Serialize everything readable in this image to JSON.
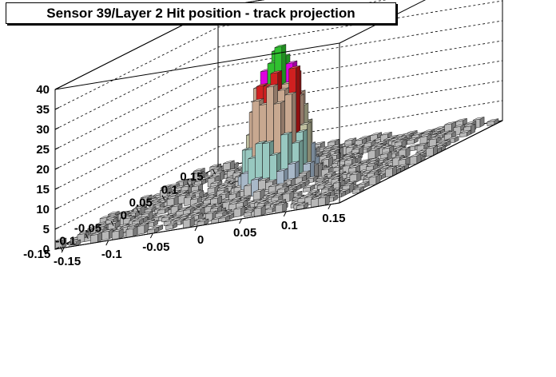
{
  "title": "Sensor 39/Layer 2 Hit position - track projection",
  "chart_data": {
    "type": "lego",
    "title": "Sensor 39/Layer 2 Hit position - track projection",
    "xlabel": "",
    "ylabel": "",
    "zlabel": "",
    "x_range": [
      -0.16,
      0.16
    ],
    "y_range": [
      -0.16,
      0.16
    ],
    "z_range": [
      0,
      40
    ],
    "x_ticks": [
      "-0.15",
      "-0.1",
      "-0.05",
      "0",
      "0.05",
      "0.1",
      "0.15"
    ],
    "y_ticks": [
      "-0.15",
      "-0.1",
      "-0.05",
      "0",
      "0.05",
      "0.1",
      "0.15"
    ],
    "z_ticks": [
      "0",
      "5",
      "10",
      "15",
      "20",
      "25",
      "30",
      "35",
      "40"
    ],
    "grid": true,
    "peak": {
      "x": 0.0,
      "y": 0.0,
      "value": 32
    },
    "distribution": "narrow peak centered near (0, 0) with height about 30 and a flat background of sparse 1-3 count bins",
    "colors": {
      "frame": "#000000",
      "background": "#ffffff",
      "bar_side": "#a8a8a8",
      "peak_green": "#30c030",
      "peak_magenta": "#e000e0",
      "peak_red": "#d02020"
    }
  }
}
